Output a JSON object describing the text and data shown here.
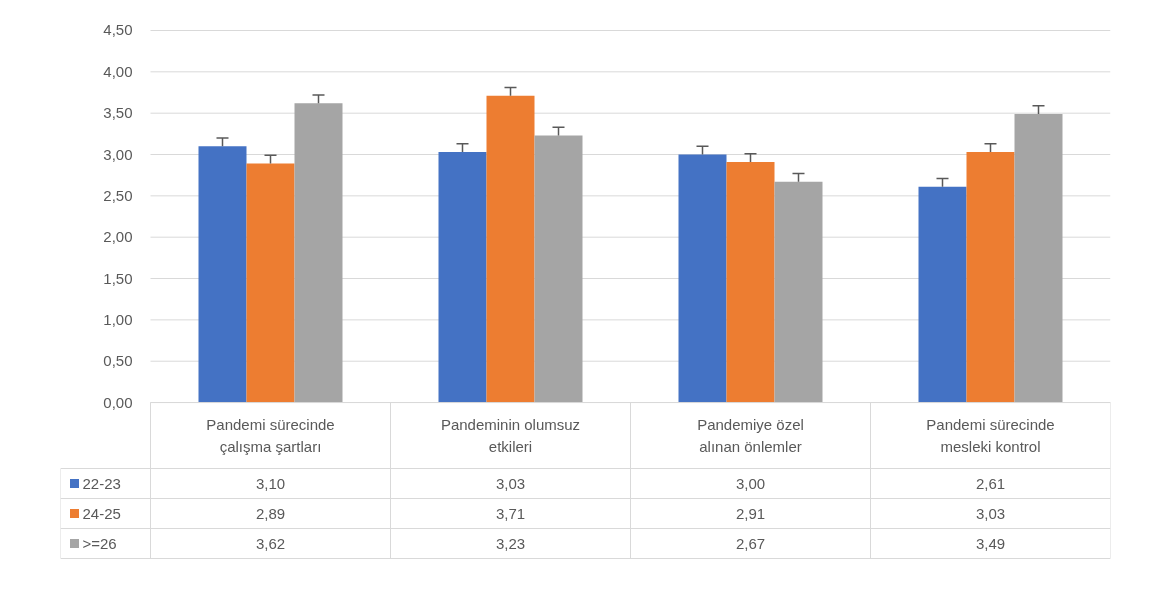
{
  "chart_data": {
    "type": "bar",
    "categories": [
      "Pandemi sürecinde\nçalışma şartları",
      "Pandeminin olumsuz\netkileri",
      "Pandemiye özel\nalınan önlemler",
      "Pandemi sürecinde\nmesleki kontrol"
    ],
    "series": [
      {
        "name": "22-23",
        "color": "#4472c4",
        "values": [
          3.1,
          3.03,
          3.0,
          2.61
        ],
        "value_labels": [
          "3,10",
          "3,03",
          "3,00",
          "2,61"
        ],
        "errors": [
          [
            3.1,
            3.2
          ],
          [
            3.03,
            3.13
          ],
          [
            3.0,
            3.1
          ],
          [
            2.61,
            2.71
          ]
        ]
      },
      {
        "name": "24-25",
        "color": "#ed7d31",
        "values": [
          2.89,
          3.71,
          2.91,
          3.03
        ],
        "value_labels": [
          "2,89",
          "3,71",
          "2,91",
          "3,03"
        ],
        "errors": [
          [
            2.89,
            2.99
          ],
          [
            3.71,
            3.81
          ],
          [
            2.91,
            3.01
          ],
          [
            3.03,
            3.13
          ]
        ]
      },
      {
        "name": ">=26",
        "color": "#a5a5a5",
        "values": [
          3.62,
          3.23,
          2.67,
          3.49
        ],
        "value_labels": [
          "3,62",
          "3,23",
          "2,67",
          "3,49"
        ],
        "errors": [
          [
            3.62,
            3.72
          ],
          [
            3.23,
            3.33
          ],
          [
            2.67,
            2.77
          ],
          [
            3.49,
            3.59
          ]
        ]
      }
    ],
    "ylim": [
      0,
      4.5
    ],
    "yticks": [
      {
        "value": 0,
        "label": "0,00"
      },
      {
        "value": 0.5,
        "label": "0,50"
      },
      {
        "value": 1,
        "label": "1,00"
      },
      {
        "value": 1.5,
        "label": "1,50"
      },
      {
        "value": 2,
        "label": "2,00"
      },
      {
        "value": 2.5,
        "label": "2,50"
      },
      {
        "value": 3,
        "label": "3,00"
      },
      {
        "value": 3.5,
        "label": "3,50"
      },
      {
        "value": 4,
        "label": "4,00"
      },
      {
        "value": 4.5,
        "label": "4,50"
      }
    ],
    "grid": "y",
    "legend": "bottom"
  }
}
